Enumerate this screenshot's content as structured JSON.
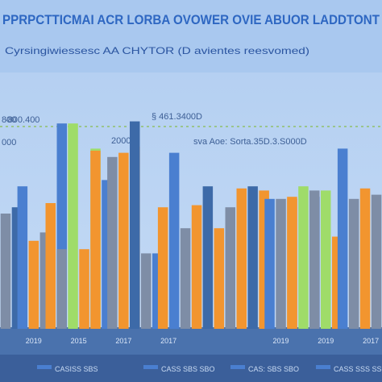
{
  "title": "PPRPCTTICMAI ACR LORBA OVOWER OVIE ABUOR LADDTONT",
  "subtitle": "Cyrsingiwiessesc AA CHYTOR (D avientes reesvomed)",
  "annotations": [
    "800",
    "-800.400",
    "000",
    "2000",
    "§ 461.3400D",
    "sva Aoe: Sorta.35D.3.S000D"
  ],
  "colors": {
    "background": "#6f9fd6",
    "header_band": "#a9c8ef",
    "plot_area": "#bcd4f2",
    "dark_blue": "#3d6aa8",
    "blue": "#4a7fd0",
    "orange": "#f2952f",
    "slate": "#7e8da6",
    "green": "#9fdc69",
    "footer": "#3b5f9a"
  },
  "legend": [
    {
      "label": "CASISS SBS",
      "color": "#4a7fd0"
    },
    {
      "label": "CASS SBS SBO",
      "color": "#4a7fd0"
    },
    {
      "label": "CAS: SBS SBO",
      "color": "#4a7fd0"
    },
    {
      "label": "CASS SSS SSO",
      "color": "#4a7fd0"
    }
  ],
  "chart_data": {
    "type": "bar",
    "title": "PPRPCTTICMAI ACR LORBA OVOWER OVIE ABUOR LADDTONT",
    "subtitle": "Cyrsingiwiessesc AA CHYTOR (D avientes reesvomed)",
    "xlabel": "",
    "ylabel": "",
    "tick_labels": [
      {
        "label": "2019",
        "group": 1
      },
      {
        "label": "2015",
        "group": 3
      },
      {
        "label": "2017",
        "group": 5
      },
      {
        "label": "2017",
        "group": 7
      },
      {
        "label": "2019",
        "group": 12
      },
      {
        "label": "2019",
        "group": 14
      },
      {
        "label": "2017",
        "group": 16
      }
    ],
    "ylim": [
      0,
      100
    ],
    "grid": false,
    "bars": [
      {
        "group": 0,
        "color": "slate",
        "value": 55
      },
      {
        "group": 0,
        "color": "dark_blue",
        "value": 58
      },
      {
        "group": 1,
        "color": "blue",
        "value": 68
      },
      {
        "group": 1,
        "color": "orange",
        "value": 42
      },
      {
        "group": 1,
        "color": "slate",
        "value": 46
      },
      {
        "group": 2,
        "color": "orange",
        "value": 60
      },
      {
        "group": 2,
        "color": "blue",
        "value": 98
      },
      {
        "group": 3,
        "color": "slate",
        "value": 38
      },
      {
        "group": 3,
        "color": "green",
        "value": 98
      },
      {
        "group": 3,
        "color": "orange",
        "value": 38
      },
      {
        "group": 3,
        "color": "green",
        "value": 86
      },
      {
        "group": 4,
        "color": "orange",
        "value": 85
      },
      {
        "group": 4,
        "color": "blue",
        "value": 71
      },
      {
        "group": 5,
        "color": "slate",
        "value": 82
      },
      {
        "group": 5,
        "color": "orange",
        "value": 84
      },
      {
        "group": 5,
        "color": "orange",
        "value": 87
      },
      {
        "group": 6,
        "color": "dark_blue",
        "value": 99
      },
      {
        "group": 6,
        "color": "slate",
        "value": 36
      },
      {
        "group": 6,
        "color": "blue",
        "value": 36
      },
      {
        "group": 7,
        "color": "orange",
        "value": 58
      },
      {
        "group": 7,
        "color": "blue",
        "value": 84
      },
      {
        "group": 8,
        "color": "slate",
        "value": 48
      },
      {
        "group": 8,
        "color": "orange",
        "value": 59
      },
      {
        "group": 9,
        "color": "dark_blue",
        "value": 68
      },
      {
        "group": 9,
        "color": "orange",
        "value": 48
      },
      {
        "group": 10,
        "color": "slate",
        "value": 58
      },
      {
        "group": 10,
        "color": "orange",
        "value": 67
      },
      {
        "group": 11,
        "color": "dark_blue",
        "value": 68
      },
      {
        "group": 11,
        "color": "orange",
        "value": 66
      },
      {
        "group": 12,
        "color": "blue",
        "value": 62
      },
      {
        "group": 12,
        "color": "slate",
        "value": 62
      },
      {
        "group": 12,
        "color": "orange",
        "value": 62
      },
      {
        "group": 13,
        "color": "orange",
        "value": 63
      },
      {
        "group": 13,
        "color": "green",
        "value": 68
      },
      {
        "group": 13,
        "color": "blue",
        "value": 63
      },
      {
        "group": 14,
        "color": "slate",
        "value": 66
      },
      {
        "group": 14,
        "color": "green",
        "value": 66
      },
      {
        "group": 14,
        "color": "orange",
        "value": 44
      },
      {
        "group": 15,
        "color": "blue",
        "value": 86
      },
      {
        "group": 15,
        "color": "slate",
        "value": 62
      },
      {
        "group": 16,
        "color": "orange",
        "value": 67
      },
      {
        "group": 16,
        "color": "slate",
        "value": 64
      }
    ]
  }
}
